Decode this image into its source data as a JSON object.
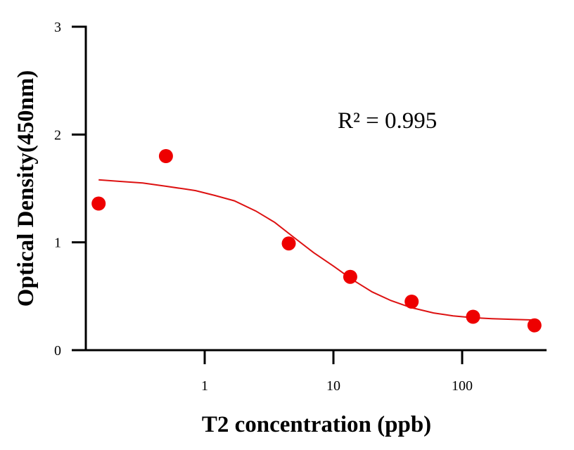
{
  "chart_data": {
    "type": "scatter",
    "xlabel": "T2 concentration (ppb)",
    "ylabel": "Optical Density(450nm)",
    "xscale": "log",
    "xlim": [
      0.1,
      500
    ],
    "ylim": [
      0,
      3
    ],
    "xticks": [
      1,
      10,
      100
    ],
    "xtick_labels": [
      "1",
      "10",
      "100"
    ],
    "yticks": [
      0,
      1,
      2,
      3
    ],
    "ytick_labels": [
      "0",
      "1",
      "2",
      "3"
    ],
    "grid": false,
    "annotation": "R² = 0.995",
    "colors": {
      "points": "#ee0000",
      "fit": "#dd1111"
    },
    "series": [
      {
        "kind": "points",
        "x": [
          0.15,
          0.5,
          4.5,
          13.5,
          40.5,
          121.5,
          364.5
        ],
        "y": [
          1.36,
          1.8,
          0.99,
          0.68,
          0.45,
          0.31,
          0.23
        ]
      },
      {
        "kind": "fit",
        "x": [
          0.15,
          0.22,
          0.33,
          0.5,
          0.7,
          0.85,
          1.2,
          1.7,
          2.5,
          3.5,
          5,
          7,
          10,
          14,
          20,
          28,
          40,
          60,
          85,
          120,
          170,
          250,
          364.5
        ],
        "y": [
          1.58,
          1.565,
          1.55,
          1.52,
          1.495,
          1.48,
          1.435,
          1.385,
          1.29,
          1.185,
          1.04,
          0.905,
          0.78,
          0.655,
          0.54,
          0.46,
          0.395,
          0.345,
          0.318,
          0.302,
          0.292,
          0.285,
          0.28
        ]
      }
    ]
  }
}
